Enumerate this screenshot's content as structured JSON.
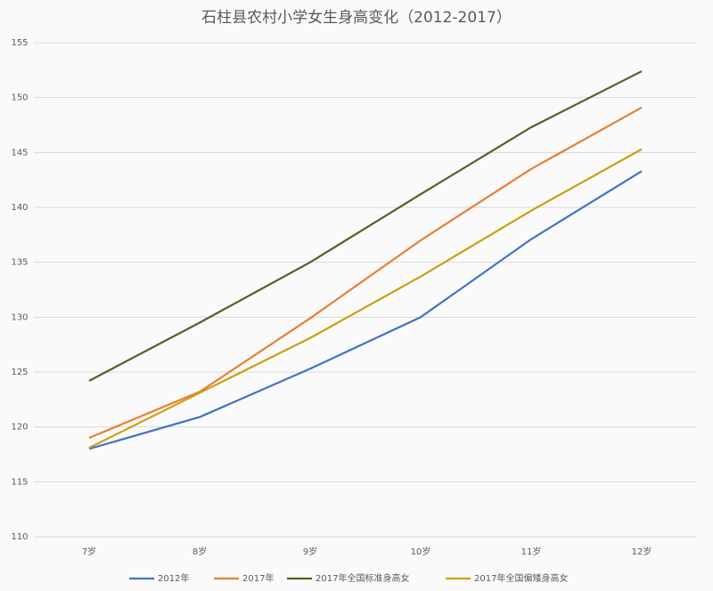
{
  "chart_data": {
    "type": "line",
    "title": "石柱县农村小学女生身高变化（2012-2017）",
    "categories": [
      "7岁",
      "8岁",
      "9岁",
      "10岁",
      "11岁",
      "12岁"
    ],
    "series": [
      {
        "name": "2012年",
        "color": "#4472c4",
        "values": [
          118.0,
          120.9,
          125.3,
          130.0,
          137.1,
          143.3
        ]
      },
      {
        "name": "2017年",
        "color": "#ed7d31",
        "values": [
          119.0,
          123.2,
          129.9,
          137.0,
          143.5,
          149.1
        ]
      },
      {
        "name": "2017年全国标准身高女",
        "color": "#4f6228",
        "values": [
          124.2,
          129.5,
          135.0,
          141.2,
          147.3,
          152.4
        ]
      },
      {
        "name": "2017年全国偏矮身高女",
        "color": "#c9a010",
        "values": [
          118.1,
          123.1,
          128.1,
          133.7,
          139.7,
          145.3
        ]
      }
    ],
    "ylim": [
      110,
      155
    ],
    "yticks": [
      110,
      115,
      120,
      125,
      130,
      135,
      140,
      145,
      150,
      155
    ],
    "grid": true
  }
}
